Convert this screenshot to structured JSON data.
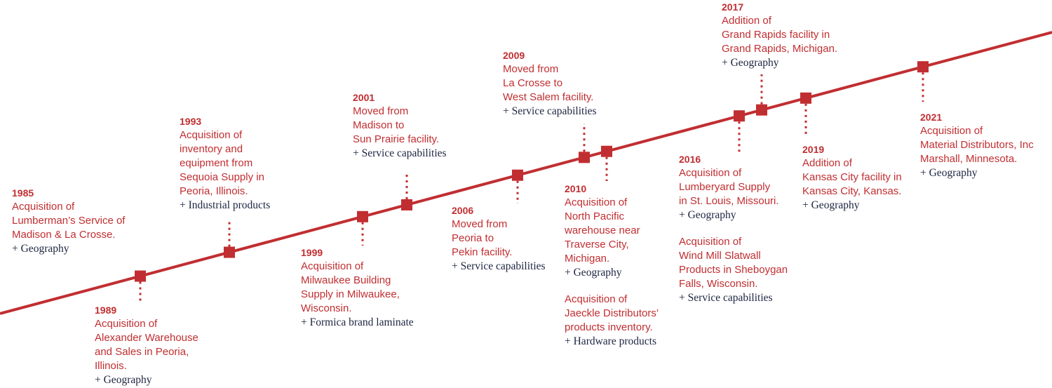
{
  "colors": {
    "accent": "#c12e31",
    "tag_text": "#1d2440",
    "background": "#ffffff"
  },
  "events": [
    {
      "year": "1985",
      "lines": [
        "Acquisition of",
        "Lumberman’s Service of",
        "Madison & La Crosse."
      ],
      "tag": "+ Geography"
    },
    {
      "year": "1989",
      "lines": [
        "Acquisition of",
        "Alexander Warehouse",
        "and Sales in Peoria,",
        "Illinois."
      ],
      "tag": "+ Geography"
    },
    {
      "year": "1993",
      "lines": [
        "Acquisition of",
        "inventory and",
        "equipment from",
        "Sequoia Supply in",
        "Peoria, Illinois."
      ],
      "tag": "+ Industrial products"
    },
    {
      "year": "1999",
      "lines": [
        "Acquisition of",
        "Milwaukee Building",
        "Supply in Milwaukee,",
        "Wisconsin."
      ],
      "tag": "+ Formica brand laminate"
    },
    {
      "year": "2001",
      "lines": [
        "Moved from",
        "Madison to",
        "Sun Prairie facility."
      ],
      "tag": "+ Service capabilities"
    },
    {
      "year": "2006",
      "lines": [
        "Moved from",
        "Peoria to",
        "Pekin facility."
      ],
      "tag": "+ Service capabilities"
    },
    {
      "year": "2009",
      "lines": [
        "Moved from",
        "La Crosse to",
        "West Salem facility."
      ],
      "tag": "+ Service capabilities"
    },
    {
      "year": "2010",
      "lines": [
        "Acquisition of",
        "North Pacific",
        "warehouse near",
        "Traverse  City,",
        "Michigan."
      ],
      "tag": "+ Geography",
      "extra": {
        "lines": [
          "Acquisition of",
          "Jaeckle Distributors’",
          "products inventory."
        ],
        "tag": "+ Hardware products"
      }
    },
    {
      "year": "2016",
      "lines": [
        "Acquisition of",
        "Lumberyard Supply",
        "in St. Louis, Missouri."
      ],
      "tag": "+ Geography",
      "extra": {
        "lines": [
          "Acquisition of",
          "Wind Mill Slatwall",
          "Products in Sheboygan",
          "Falls, Wisconsin."
        ],
        "tag": "+ Service capabilities"
      }
    },
    {
      "year": "2017",
      "lines": [
        "Addition of",
        "Grand Rapids facility in",
        "Grand Rapids, Michigan."
      ],
      "tag": "+ Geography"
    },
    {
      "year": "2019",
      "lines": [
        "Addition of",
        "Kansas City facility in",
        "Kansas City, Kansas."
      ],
      "tag": "+ Geography"
    },
    {
      "year": "2021",
      "lines": [
        "Acquisition of",
        "Material Distributors, Inc",
        "Marshall, Minnesota."
      ],
      "tag": "+ Geography"
    }
  ]
}
